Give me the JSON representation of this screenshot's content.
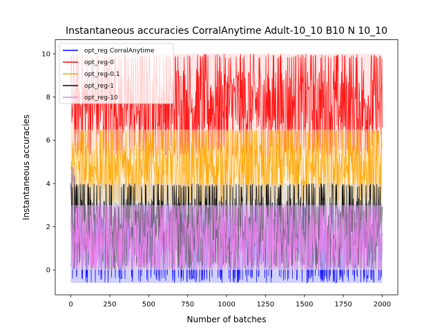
{
  "chart_data": {
    "type": "line",
    "title": "Instantaneous accuracies CorralAnytime Adult-10_10 B10 N 10_10",
    "xlabel": "Number of batches",
    "ylabel": "Instantaneous accuracies",
    "xlim": [
      -100,
      2100
    ],
    "ylim": [
      -1.15,
      10.65
    ],
    "x_ticks": [
      0,
      250,
      500,
      750,
      1000,
      1250,
      1500,
      1750,
      2000
    ],
    "y_ticks": [
      0,
      2,
      4,
      6,
      8,
      10
    ],
    "grid": false,
    "legend_position": "top-left",
    "n_batches": 2000,
    "series": [
      {
        "name": "opt_reg CorralAnytime",
        "color": "#0000ff",
        "band_color": "#9999ff",
        "bands": [
          {
            "x": [
              0,
              30
            ],
            "low": 2.6,
            "high": 4.8
          },
          {
            "x": [
              0,
              2000
            ],
            "low": -0.6,
            "high": 3.1
          }
        ]
      },
      {
        "name": "opt_reg-0",
        "color": "#ff0000",
        "band_color": "#ffcccc",
        "bands": [
          {
            "x": [
              0,
              2000
            ],
            "low": 5.3,
            "high": 10.0
          }
        ]
      },
      {
        "name": "opt_reg-0.1",
        "color": "#ffa500",
        "band_color": "#ffe4b3",
        "bands": [
          {
            "x": [
              0,
              2000
            ],
            "low": 3.0,
            "high": 6.5
          }
        ]
      },
      {
        "name": "opt_reg-1",
        "color": "#000000",
        "band_color": "#cccccc",
        "bands": [
          {
            "x": [
              0,
              2000
            ],
            "low": 0.0,
            "high": 4.0
          }
        ]
      },
      {
        "name": "opt_reg-10",
        "color": "#ee82ee",
        "band_color": "#f7c8f7",
        "bands": [
          {
            "x": [
              0,
              2000
            ],
            "low": 0.0,
            "high": 3.0
          }
        ]
      }
    ]
  }
}
